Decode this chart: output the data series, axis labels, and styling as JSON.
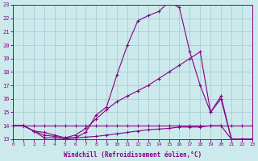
{
  "xlabel": "Windchill (Refroidissement éolien,°C)",
  "background_color": "#cce9ec",
  "grid_color": "#9bbfc6",
  "line_color": "#880088",
  "xlim": [
    0,
    23
  ],
  "ylim": [
    13,
    23
  ],
  "xticks": [
    0,
    1,
    2,
    3,
    4,
    5,
    6,
    7,
    8,
    9,
    10,
    11,
    12,
    13,
    14,
    15,
    16,
    17,
    18,
    19,
    20,
    21,
    22,
    23
  ],
  "yticks": [
    13,
    14,
    15,
    16,
    17,
    18,
    19,
    20,
    21,
    22,
    23
  ],
  "line_flat_x": [
    0,
    1,
    2,
    3,
    4,
    5,
    6,
    7,
    8,
    9,
    10,
    11,
    12,
    13,
    14,
    15,
    16,
    17,
    18,
    19,
    20,
    21,
    22,
    23
  ],
  "line_flat_y": [
    14,
    14,
    14,
    14,
    14,
    14,
    14,
    14,
    14,
    14,
    14,
    14,
    14,
    14,
    14,
    14,
    14,
    14,
    14,
    14,
    14,
    14,
    14,
    14
  ],
  "line_bot_x": [
    0,
    1,
    2,
    3,
    4,
    5,
    6,
    7,
    8,
    9,
    10,
    11,
    12,
    13,
    14,
    15,
    16,
    17,
    18,
    19,
    20,
    21,
    22,
    23
  ],
  "line_bot_y": [
    14,
    14,
    13.6,
    13.5,
    13.3,
    13.1,
    13.1,
    13.15,
    13.2,
    13.3,
    13.4,
    13.5,
    13.6,
    13.7,
    13.75,
    13.8,
    13.9,
    13.9,
    13.9,
    14.0,
    14.0,
    13.0,
    13.0,
    13.0
  ],
  "line_slow_x": [
    0,
    1,
    2,
    3,
    4,
    5,
    6,
    7,
    8,
    9,
    10,
    11,
    12,
    13,
    14,
    15,
    16,
    17,
    18,
    19,
    20,
    21,
    22,
    23
  ],
  "line_slow_y": [
    14,
    14,
    13.6,
    13.3,
    13.2,
    13.1,
    13.3,
    13.8,
    14.5,
    15.2,
    15.8,
    16.2,
    16.6,
    17.0,
    17.5,
    18.0,
    18.5,
    19.0,
    19.5,
    15.0,
    16.0,
    13.0,
    13.0,
    13.0
  ],
  "line_main_x": [
    0,
    1,
    2,
    3,
    4,
    5,
    6,
    7,
    8,
    9,
    10,
    11,
    12,
    13,
    14,
    15,
    16,
    17,
    18,
    19,
    20,
    21,
    22,
    23
  ],
  "line_main_y": [
    14,
    14,
    13.6,
    13.1,
    13.1,
    13.0,
    13.1,
    13.5,
    14.8,
    15.4,
    17.8,
    20.0,
    21.8,
    22.2,
    22.5,
    23.2,
    22.8,
    19.5,
    17.0,
    15.0,
    16.2,
    13.0,
    13.0,
    13.0
  ]
}
